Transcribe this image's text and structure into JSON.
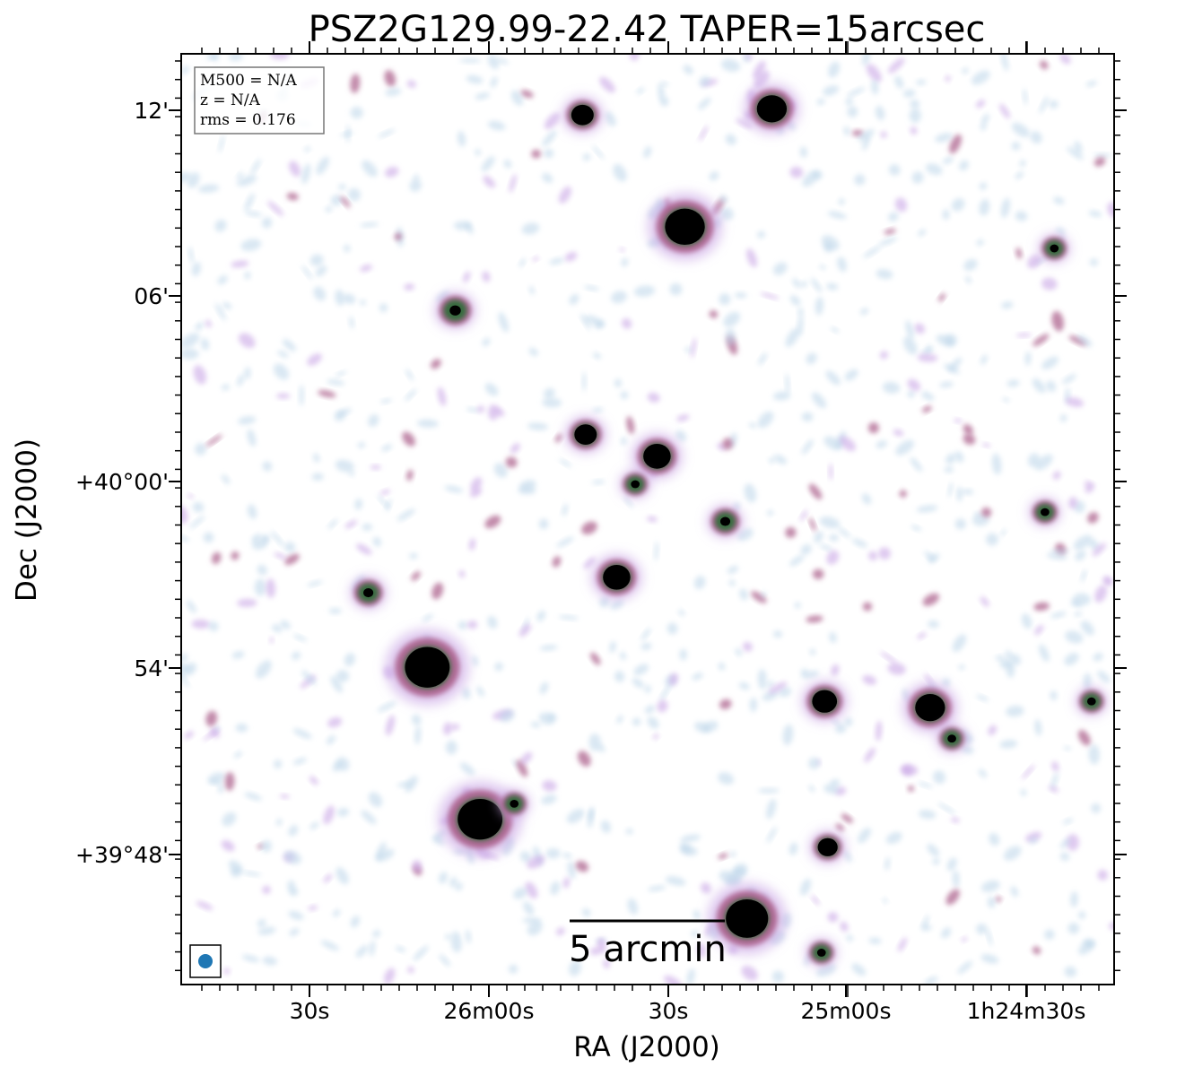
{
  "title": "PSZ2G129.99-22.42 TAPER=15arcsec",
  "xlabel": "RA (J2000)",
  "ylabel": "Dec (J2000)",
  "x_ticks": [
    "30s",
    "26m00s",
    "30s",
    "25m00s",
    "1h24m30s"
  ],
  "y_ticks": [
    "12'",
    "06'",
    "+40°00'",
    "54'",
    "+39°48'"
  ],
  "info_box": {
    "line1": "M500 = N/A",
    "line2": "z = N/A",
    "line3": "rms = 0.176"
  },
  "scale_bar_label": "5 arcmin",
  "colors": {
    "source_core": "#000000",
    "source_inner": "#2e6b3a",
    "source_mid": "#a85a86",
    "source_outer": "#c9a6e6",
    "noise": "#bcd6ea",
    "beam": "#1f77b4"
  },
  "sources": [
    {
      "ra": 1.2,
      "dec": 8.3,
      "size": 1.6,
      "type": "bright"
    },
    {
      "ra": 4.0,
      "dec": 12.1,
      "size": 1.2,
      "type": "bright"
    },
    {
      "ra": -2.1,
      "dec": 11.9,
      "size": 0.9,
      "type": "bright"
    },
    {
      "ra": -2.0,
      "dec": 1.6,
      "size": 0.9,
      "type": "bright"
    },
    {
      "ra": 0.3,
      "dec": 0.9,
      "size": 1.1,
      "type": "bright"
    },
    {
      "ra": -1.0,
      "dec": -3.0,
      "size": 1.1,
      "type": "bright"
    },
    {
      "ra": -7.1,
      "dec": -5.9,
      "size": 1.8,
      "type": "bright"
    },
    {
      "ra": -5.4,
      "dec": -10.8,
      "size": 1.8,
      "type": "bright"
    },
    {
      "ra": 5.7,
      "dec": -7.0,
      "size": 1.0,
      "type": "bright"
    },
    {
      "ra": 9.1,
      "dec": -7.2,
      "size": 1.2,
      "type": "bright"
    },
    {
      "ra": 5.8,
      "dec": -11.7,
      "size": 0.8,
      "type": "bright"
    },
    {
      "ra": 3.2,
      "dec": -14.0,
      "size": 1.7,
      "type": "bright"
    },
    {
      "ra": 13.1,
      "dec": 7.6,
      "size": 0.7,
      "type": "compact"
    },
    {
      "ra": 12.8,
      "dec": -0.9,
      "size": 0.7,
      "type": "compact"
    },
    {
      "ra": 14.3,
      "dec": -7.0,
      "size": 0.7,
      "type": "compact"
    },
    {
      "ra": 9.8,
      "dec": -8.2,
      "size": 0.7,
      "type": "compact"
    },
    {
      "ra": -6.2,
      "dec": 5.6,
      "size": 0.9,
      "type": "compact"
    },
    {
      "ra": -9.0,
      "dec": -3.5,
      "size": 0.8,
      "type": "compact"
    },
    {
      "ra": 2.5,
      "dec": -1.2,
      "size": 0.8,
      "type": "compact"
    },
    {
      "ra": -0.4,
      "dec": 0.0,
      "size": 0.7,
      "type": "compact"
    },
    {
      "ra": 5.6,
      "dec": -15.1,
      "size": 0.7,
      "type": "compact"
    },
    {
      "ra": -4.3,
      "dec": -10.3,
      "size": 0.7,
      "type": "compact"
    }
  ]
}
